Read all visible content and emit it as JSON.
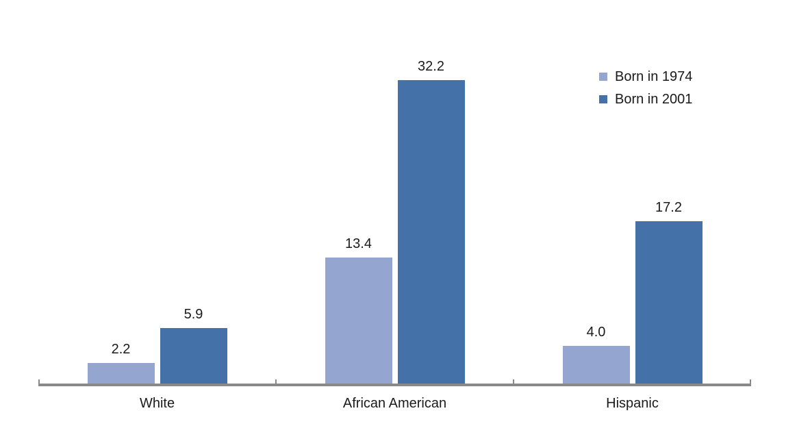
{
  "chart_data": {
    "type": "bar",
    "categories": [
      "White",
      "African American",
      "Hispanic"
    ],
    "series": [
      {
        "name": "Born in 1974",
        "color": "#94A6CF",
        "values": [
          2.2,
          13.4,
          4.0
        ],
        "labels": [
          "2.2",
          "13.4",
          "4.0"
        ]
      },
      {
        "name": "Born in 2001",
        "color": "#4472A8",
        "values": [
          5.9,
          32.2,
          17.2
        ],
        "labels": [
          "5.9",
          "32.2",
          "17.2"
        ]
      }
    ],
    "title": "",
    "xlabel": "",
    "ylabel": "",
    "ylim": [
      0,
      36
    ],
    "grid": false,
    "legend_position": "top-right",
    "value_labels_shown": true,
    "y_axis_shown": false
  },
  "colors": {
    "series_1974": "#94A6CF",
    "series_2001": "#4472A8",
    "axis": "#898989",
    "text": "#1A1A1A",
    "background": "#FFFFFF"
  }
}
